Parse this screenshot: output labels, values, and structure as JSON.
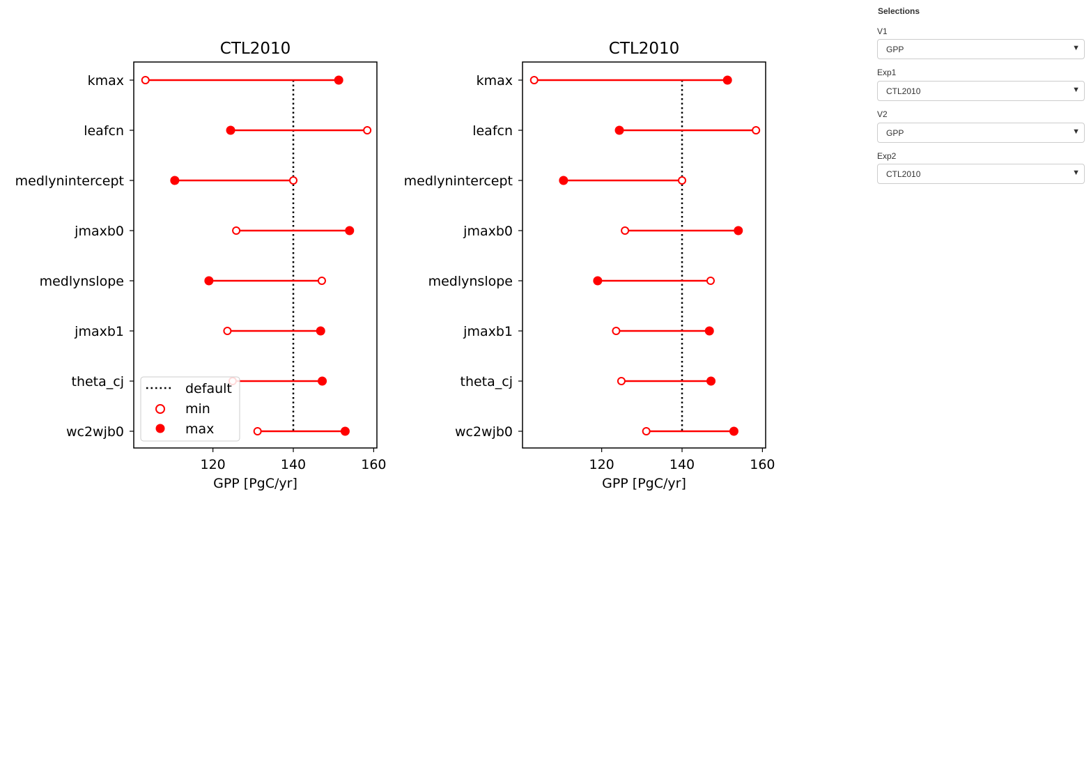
{
  "sidebar": {
    "title": "Selections",
    "fields": [
      {
        "label": "V1",
        "value": "GPP"
      },
      {
        "label": "Exp1",
        "value": "CTL2010"
      },
      {
        "label": "V2",
        "value": "GPP"
      },
      {
        "label": "Exp2",
        "value": "CTL2010"
      }
    ],
    "caret": "▼"
  },
  "colors": {
    "series": "#ff0000",
    "default_line": "#000000"
  },
  "chart_data": [
    {
      "type": "dumbbell",
      "title": "CTL2010",
      "xlabel": "GPP [PgC/yr]",
      "ylabel": "",
      "xlim": [
        100.3,
        160.8
      ],
      "xticks": [
        120,
        140,
        160
      ],
      "default": 140,
      "legend": {
        "position": "lower-left",
        "entries": [
          "default",
          "min",
          "max"
        ]
      },
      "categories": [
        "kmax",
        "leafcn",
        "medlynintercept",
        "jmaxb0",
        "medlynslope",
        "jmaxb1",
        "theta_cj",
        "wc2wjb0"
      ],
      "series": [
        {
          "name": "min",
          "values": [
            103.2,
            158.4,
            140.0,
            125.8,
            147.1,
            123.6,
            124.9,
            131.1
          ]
        },
        {
          "name": "max",
          "values": [
            151.3,
            124.4,
            110.5,
            154.0,
            119.0,
            146.8,
            147.2,
            152.9
          ]
        }
      ]
    },
    {
      "type": "dumbbell",
      "title": "CTL2010",
      "xlabel": "GPP [PgC/yr]",
      "ylabel": "",
      "xlim": [
        100.3,
        160.8
      ],
      "xticks": [
        120,
        140,
        160
      ],
      "default": 140,
      "legend": null,
      "categories": [
        "kmax",
        "leafcn",
        "medlynintercept",
        "jmaxb0",
        "medlynslope",
        "jmaxb1",
        "theta_cj",
        "wc2wjb0"
      ],
      "series": [
        {
          "name": "min",
          "values": [
            103.2,
            158.4,
            140.0,
            125.8,
            147.1,
            123.6,
            124.9,
            131.1
          ]
        },
        {
          "name": "max",
          "values": [
            151.3,
            124.4,
            110.5,
            154.0,
            119.0,
            146.8,
            147.2,
            152.9
          ]
        }
      ]
    }
  ]
}
